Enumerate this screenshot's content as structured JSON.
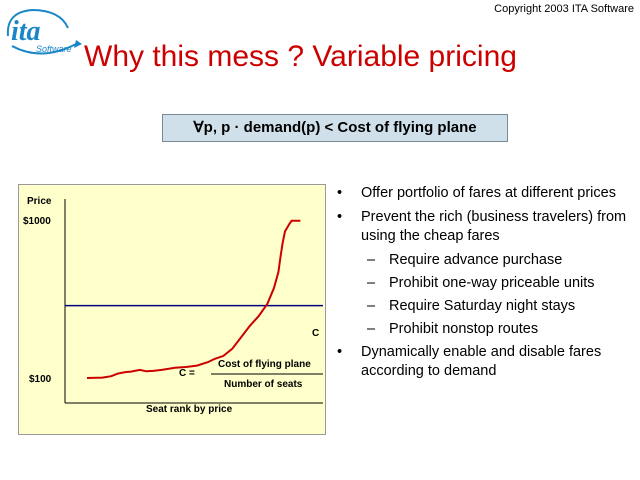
{
  "logo": {
    "text": "ita",
    "sub": "Software"
  },
  "copyright": "Copyright 2003 ITA Software",
  "title": "Why this mess ?  Variable pricing",
  "formula": "∀p, p · demand(p) < Cost of flying plane",
  "colors": {
    "title": "#cc0000",
    "curve": "#cc0000",
    "cost_line": "#000080",
    "chart_bg": "#ffffcc",
    "formula_bg": "#cfe0ea",
    "logo_blue": "#1a86c8"
  },
  "chart_data": {
    "type": "line",
    "ylabel": "Price",
    "xlabel": "Seat rank by price",
    "y_tick_labels": [
      "$1000",
      "$100"
    ],
    "ylim": [
      100,
      1000
    ],
    "xlim": [
      0,
      100
    ],
    "grid": false,
    "series": [
      {
        "x": [
          0,
          7,
          11,
          14,
          17,
          20,
          24,
          27,
          30,
          34,
          40,
          45,
          50,
          55,
          58,
          62,
          66,
          70,
          74,
          78,
          82,
          85,
          87,
          88,
          89,
          90,
          92,
          93,
          97
        ],
        "y": [
          100,
          102,
          110,
          125,
          132,
          136,
          146,
          138,
          140,
          146,
          158,
          162,
          170,
          190,
          208,
          225,
          265,
          330,
          395,
          450,
          520,
          610,
          700,
          790,
          870,
          930,
          972,
          990,
          990
        ]
      }
    ],
    "cost_line": {
      "y": 510,
      "label": "C"
    },
    "annotation": {
      "lhs": "C =",
      "numerator": "Cost of flying plane",
      "denominator": "Number of seats"
    }
  },
  "bullets": [
    {
      "level": 1,
      "mark": "•",
      "text": "Offer portfolio of fares at different prices"
    },
    {
      "level": 1,
      "mark": "•",
      "text": "Prevent the rich (business travelers) from using the cheap fares"
    },
    {
      "level": 2,
      "mark": "–",
      "text": "Require advance purchase"
    },
    {
      "level": 2,
      "mark": "–",
      "text": "Prohibit one-way priceable units"
    },
    {
      "level": 2,
      "mark": "–",
      "text": "Require Saturday night stays"
    },
    {
      "level": 2,
      "mark": "–",
      "text": "Prohibit nonstop routes"
    },
    {
      "level": 1,
      "mark": "•",
      "text": "Dynamically enable and disable fares according to demand"
    }
  ]
}
